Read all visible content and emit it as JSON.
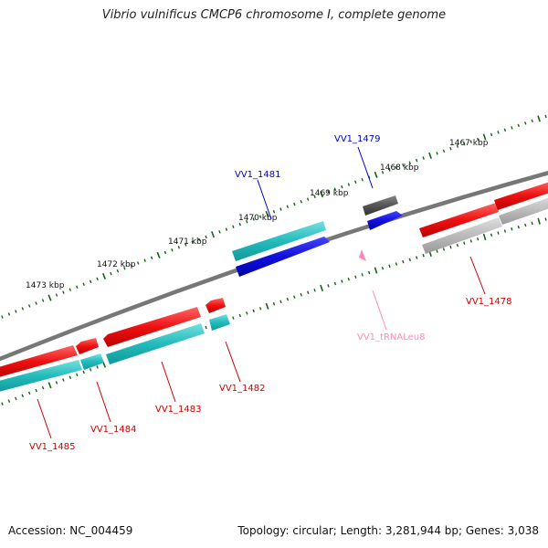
{
  "title": "Vibrio vulnificus CMCP6 chromosome I, complete genome",
  "footer": {
    "accession": "Accession: NC_004459",
    "summary": "Topology: circular; Length: 3,281,944 bp; Genes: 3,038"
  },
  "scale_labels": [
    "1467 kbp",
    "1468 kbp",
    "1469 kbp",
    "1470 kbp",
    "1471 kbp",
    "1472 kbp",
    "1473 kbp"
  ],
  "gene_labels": {
    "vv1_1479": "VV1_1479",
    "vv1_1481": "VV1_1481",
    "vv1_1478": "VV1_1478",
    "vv1_trna": "VV1_tRNALeu8",
    "vv1_1482": "VV1_1482",
    "vv1_1483": "VV1_1483",
    "vv1_1484": "VV1_1484",
    "vv1_1485": "VV1_1485"
  },
  "colors": {
    "cds": "#ee1111",
    "cds_label": "#cc0000",
    "gene": "#22bbbb",
    "gene_blue": "#1111dd",
    "gene_blue_label": "#0000cc",
    "pseudo": "#555555",
    "pseudo_light": "#bbbbbb",
    "trna": "#ff99cc",
    "trna_label": "#ff88bb",
    "tick": "#116611",
    "backbone": "#777777"
  }
}
